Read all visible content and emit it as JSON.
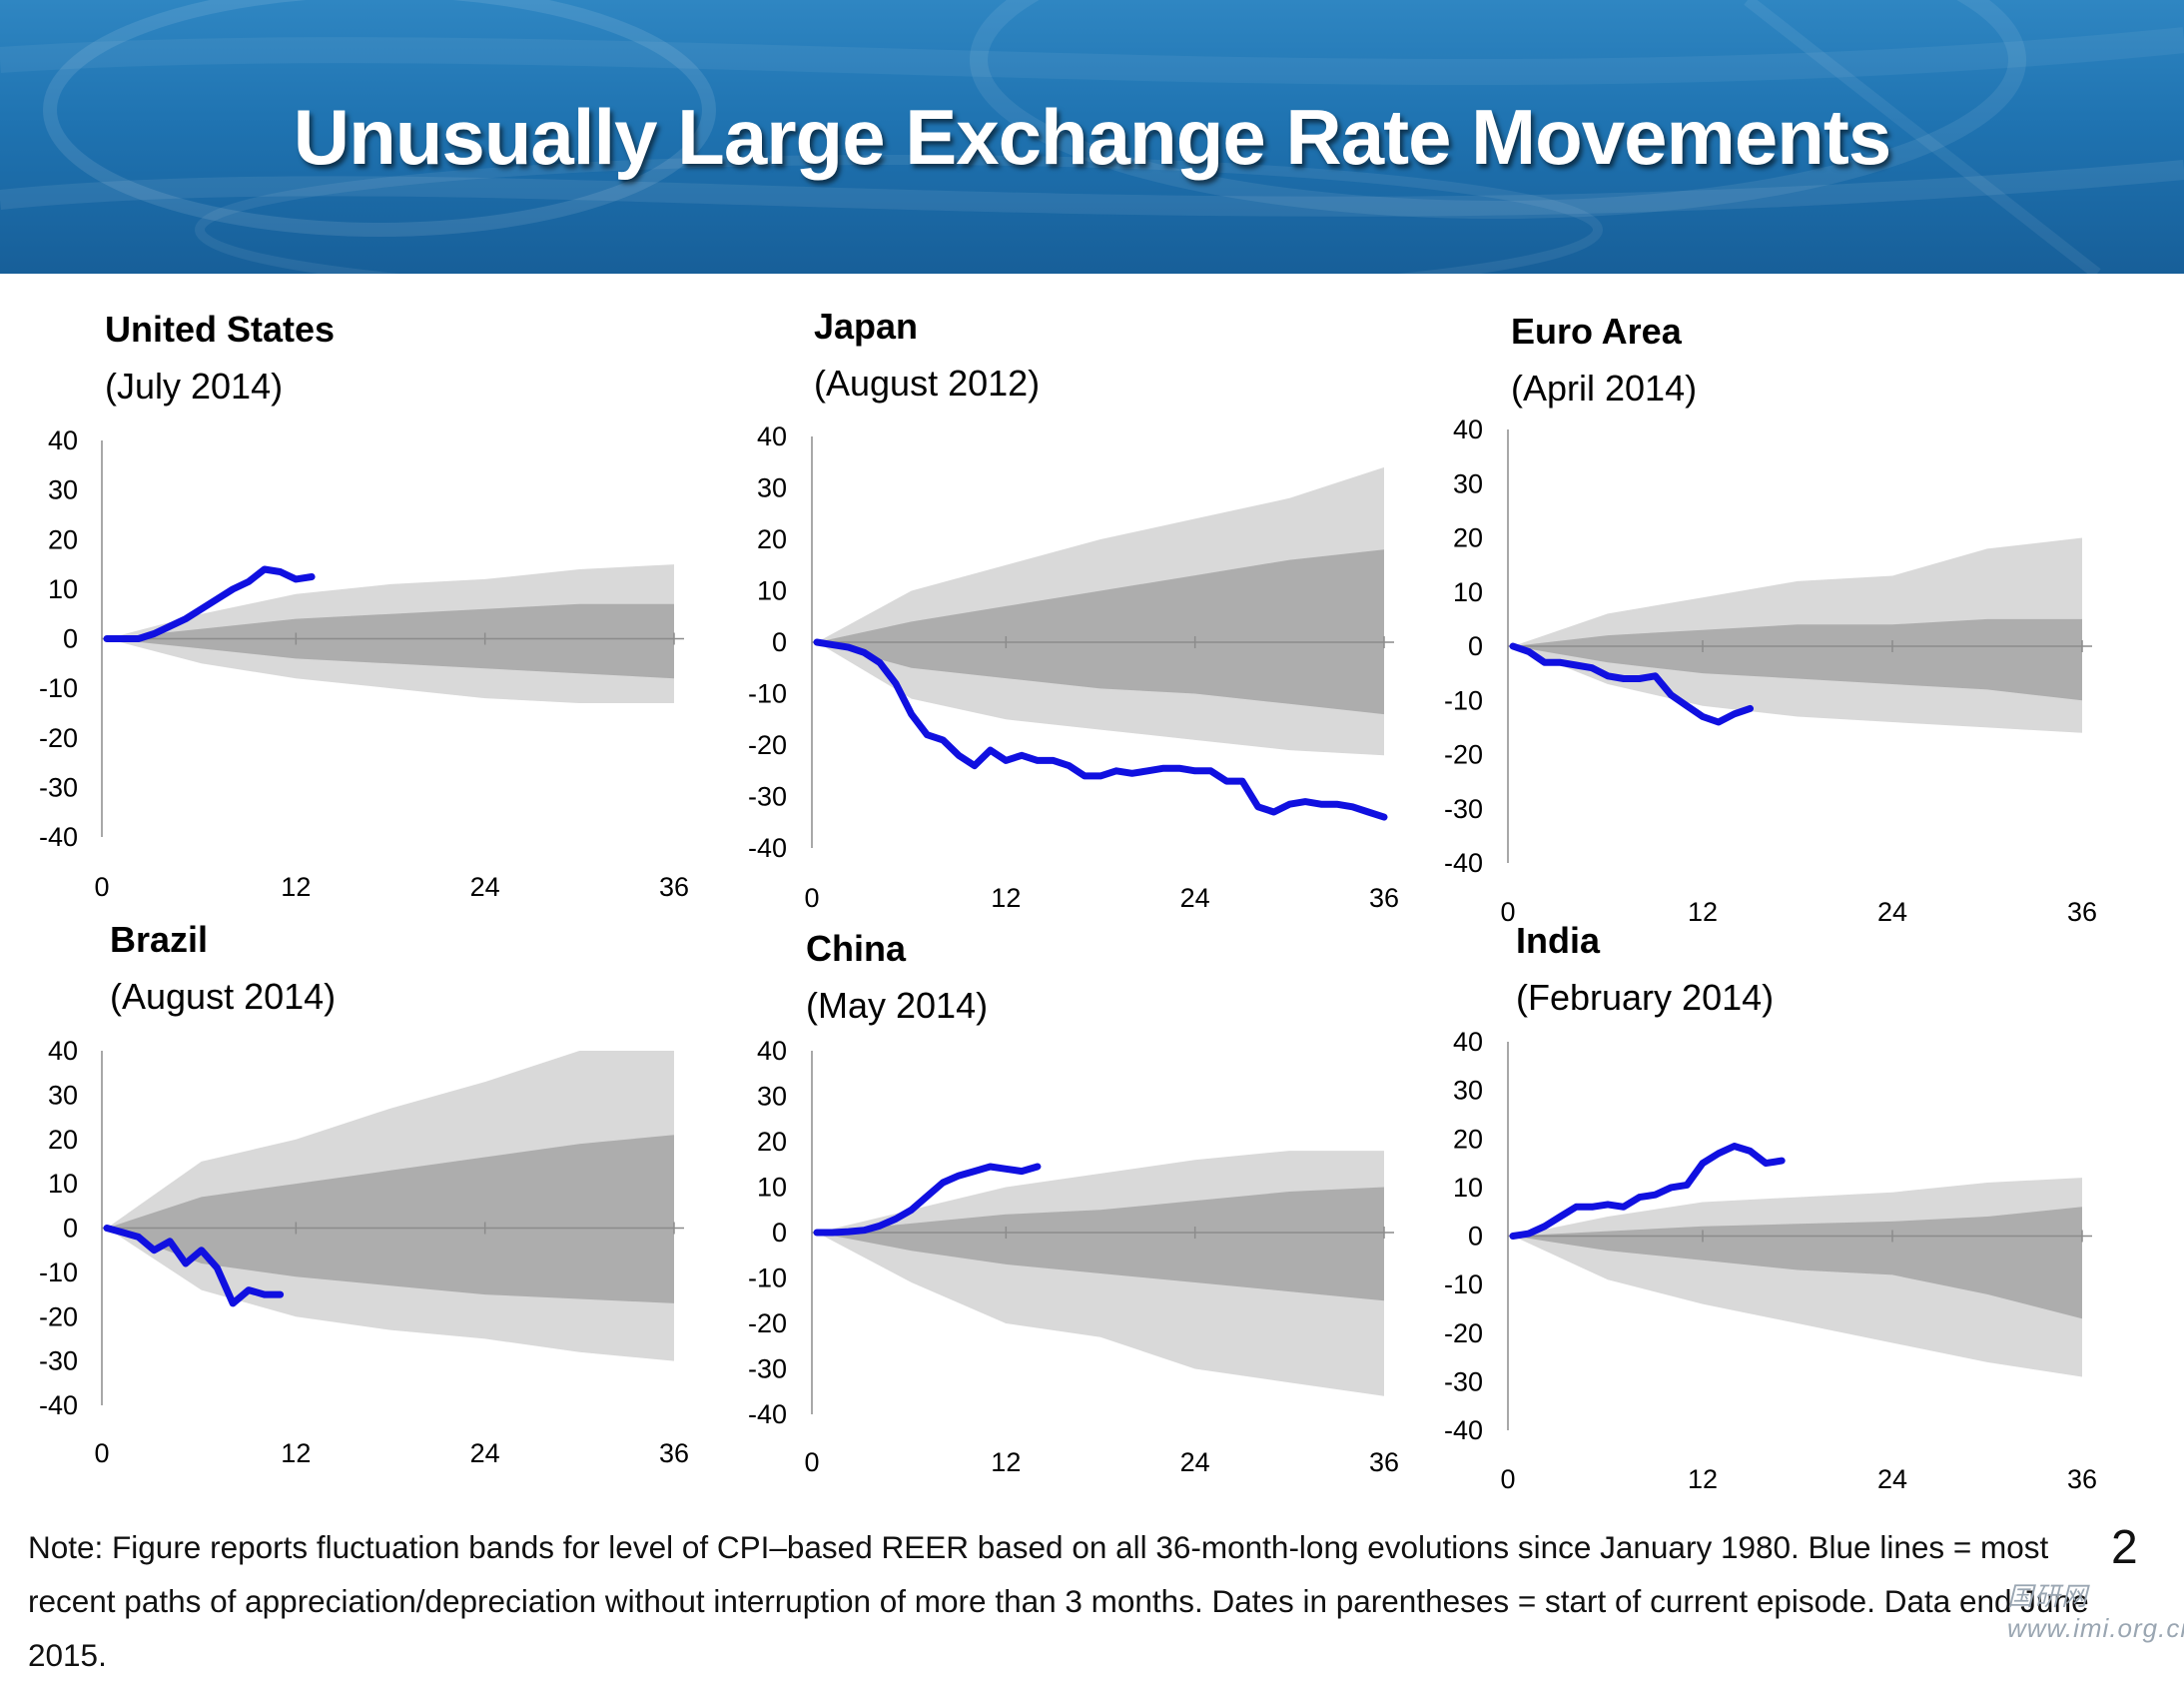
{
  "title": "Unusually Large Exchange Rate Movements",
  "note": "Note: Figure reports fluctuation bands for level of CPI–based REER based on all 36-month-long evolutions since January 1980. Blue lines = most recent paths of appreciation/depreciation without interruption of more than 3 months. Dates in parentheses = start of current episode. Data end June 2015.",
  "page_number": "2",
  "watermark": "国研网 www.imi.org.cn",
  "colors": {
    "banner": "#1f73b1",
    "line": "#1010e0",
    "outer_band": "#d9d9d9",
    "inner_band": "#adadad",
    "text": "#000000"
  },
  "chart_data": [
    {
      "type": "area",
      "title": "United States",
      "subtitle": "(July 2014)",
      "xticks": [
        0,
        12,
        24,
        36
      ],
      "yticks": [
        40,
        30,
        20,
        10,
        0,
        -10,
        -20,
        -30,
        -40
      ],
      "xlim": [
        0,
        36
      ],
      "ylim": [
        -40,
        40
      ],
      "bands": {
        "x": [
          0,
          6,
          12,
          18,
          24,
          30,
          36
        ],
        "outer_upper": [
          0,
          5,
          9,
          11,
          12,
          14,
          15
        ],
        "inner_upper": [
          0,
          2,
          4,
          5,
          6,
          7,
          7
        ],
        "inner_lower": [
          0,
          -2,
          -4,
          -5,
          -6,
          -7,
          -8
        ],
        "outer_lower": [
          0,
          -5,
          -8,
          -10,
          -12,
          -13,
          -13
        ]
      },
      "series": [
        {
          "x": [
            0,
            1,
            2,
            3,
            4,
            5,
            6,
            7,
            8,
            9,
            10,
            11,
            12,
            13
          ],
          "values": [
            0,
            0,
            0,
            1,
            2.5,
            4,
            6,
            8,
            10,
            11.5,
            14,
            13.5,
            12,
            12.5
          ]
        }
      ]
    },
    {
      "type": "area",
      "title": "Japan",
      "subtitle": "(August 2012)",
      "xticks": [
        0,
        12,
        24,
        36
      ],
      "yticks": [
        40,
        30,
        20,
        10,
        0,
        -10,
        -20,
        -30,
        -40
      ],
      "xlim": [
        0,
        36
      ],
      "ylim": [
        -40,
        40
      ],
      "bands": {
        "x": [
          0,
          6,
          12,
          18,
          24,
          30,
          36
        ],
        "outer_upper": [
          0,
          10,
          15,
          20,
          24,
          28,
          34
        ],
        "inner_upper": [
          0,
          4,
          7,
          10,
          13,
          16,
          18
        ],
        "inner_lower": [
          0,
          -5,
          -7,
          -9,
          -10,
          -12,
          -14
        ],
        "outer_lower": [
          0,
          -11,
          -15,
          -17,
          -19,
          -21,
          -22
        ]
      },
      "series": [
        {
          "x": [
            0,
            1,
            2,
            3,
            4,
            5,
            6,
            7,
            8,
            9,
            10,
            11,
            12,
            13,
            14,
            15,
            16,
            17,
            18,
            19,
            20,
            21,
            22,
            23,
            24,
            25,
            26,
            27,
            28,
            29,
            30,
            31,
            32,
            33,
            34,
            35,
            36
          ],
          "values": [
            0,
            -0.5,
            -1,
            -2,
            -4,
            -8,
            -14,
            -18,
            -19,
            -22,
            -24,
            -21,
            -23,
            -22,
            -23,
            -23,
            -24,
            -26,
            -26,
            -25,
            -25.5,
            -25,
            -24.5,
            -24.5,
            -25,
            -25,
            -27,
            -27,
            -32,
            -33,
            -31.5,
            -31,
            -31.5,
            -31.5,
            -32,
            -33,
            -34
          ]
        }
      ]
    },
    {
      "type": "area",
      "title": "Euro Area",
      "subtitle": "(April 2014)",
      "xticks": [
        0,
        12,
        24,
        36
      ],
      "yticks": [
        40,
        30,
        20,
        10,
        0,
        -10,
        -20,
        -30,
        -40
      ],
      "xlim": [
        0,
        36
      ],
      "ylim": [
        -40,
        40
      ],
      "bands": {
        "x": [
          0,
          6,
          12,
          18,
          24,
          30,
          36
        ],
        "outer_upper": [
          0,
          6,
          9,
          12,
          13,
          18,
          20
        ],
        "inner_upper": [
          0,
          2,
          3,
          4,
          4,
          5,
          5
        ],
        "inner_lower": [
          0,
          -3,
          -5,
          -6,
          -7,
          -8,
          -10
        ],
        "outer_lower": [
          0,
          -7,
          -11,
          -13,
          -14,
          -15,
          -16
        ]
      },
      "series": [
        {
          "x": [
            0,
            1,
            2,
            3,
            4,
            5,
            6,
            7,
            8,
            9,
            10,
            11,
            12,
            13,
            14,
            15
          ],
          "values": [
            0,
            -1,
            -3,
            -3,
            -3.5,
            -4,
            -5.5,
            -6,
            -6,
            -5.5,
            -9,
            -11,
            -13,
            -14,
            -12.5,
            -11.5
          ]
        }
      ]
    },
    {
      "type": "area",
      "title": "Brazil",
      "subtitle": "(August 2014)",
      "xticks": [
        0,
        12,
        24,
        36
      ],
      "yticks": [
        40,
        30,
        20,
        10,
        0,
        -10,
        -20,
        -30,
        -40
      ],
      "xlim": [
        0,
        36
      ],
      "ylim": [
        -40,
        40
      ],
      "bands": {
        "x": [
          0,
          6,
          12,
          18,
          24,
          30,
          36
        ],
        "outer_upper": [
          0,
          15,
          20,
          27,
          33,
          40,
          40
        ],
        "inner_upper": [
          0,
          7,
          10,
          13,
          16,
          19,
          21
        ],
        "inner_lower": [
          0,
          -8,
          -11,
          -13,
          -15,
          -16,
          -17
        ],
        "outer_lower": [
          0,
          -14,
          -20,
          -23,
          -25,
          -28,
          -30
        ]
      },
      "series": [
        {
          "x": [
            0,
            1,
            2,
            3,
            4,
            5,
            6,
            7,
            8,
            9,
            10,
            11
          ],
          "values": [
            0,
            -1,
            -2,
            -5,
            -3,
            -8,
            -5,
            -9,
            -17,
            -14,
            -15,
            -15
          ]
        }
      ]
    },
    {
      "type": "area",
      "title": "China",
      "subtitle": "(May 2014)",
      "xticks": [
        0,
        12,
        24,
        36
      ],
      "yticks": [
        40,
        30,
        20,
        10,
        0,
        -10,
        -20,
        -30,
        -40
      ],
      "xlim": [
        0,
        36
      ],
      "ylim": [
        -40,
        40
      ],
      "bands": {
        "x": [
          0,
          6,
          12,
          18,
          24,
          30,
          36
        ],
        "outer_upper": [
          0,
          5,
          10,
          13,
          16,
          18,
          18
        ],
        "inner_upper": [
          0,
          2,
          4,
          5,
          7,
          9,
          10
        ],
        "inner_lower": [
          0,
          -4,
          -7,
          -9,
          -11,
          -13,
          -15
        ],
        "outer_lower": [
          0,
          -11,
          -20,
          -23,
          -30,
          -33,
          -36
        ]
      },
      "series": [
        {
          "x": [
            0,
            1,
            2,
            3,
            4,
            5,
            6,
            7,
            8,
            9,
            10,
            11,
            12,
            13,
            14
          ],
          "values": [
            0,
            0,
            0.2,
            0.5,
            1.5,
            3,
            5,
            8,
            11,
            12.5,
            13.5,
            14.5,
            14,
            13.5,
            14.5
          ]
        }
      ]
    },
    {
      "type": "area",
      "title": "India",
      "subtitle": "(February 2014)",
      "xticks": [
        0,
        12,
        24,
        36
      ],
      "yticks": [
        40,
        30,
        20,
        10,
        0,
        -10,
        -20,
        -30,
        -40
      ],
      "xlim": [
        0,
        36
      ],
      "ylim": [
        -40,
        40
      ],
      "bands": {
        "x": [
          0,
          6,
          12,
          18,
          24,
          30,
          36
        ],
        "outer_upper": [
          0,
          4,
          7,
          8,
          9,
          11,
          12
        ],
        "inner_upper": [
          0,
          1,
          2,
          2.5,
          3,
          4,
          6
        ],
        "inner_lower": [
          0,
          -3,
          -5,
          -7,
          -8,
          -12,
          -17
        ],
        "outer_lower": [
          0,
          -9,
          -14,
          -18,
          -22,
          -26,
          -29
        ]
      },
      "series": [
        {
          "x": [
            0,
            1,
            2,
            3,
            4,
            5,
            6,
            7,
            8,
            9,
            10,
            11,
            12,
            13,
            14,
            15,
            16,
            17
          ],
          "values": [
            0,
            0.5,
            2,
            4,
            6,
            6,
            6.5,
            6,
            8,
            8.5,
            10,
            10.5,
            15,
            17,
            18.5,
            17.5,
            15,
            15.5
          ]
        }
      ]
    }
  ]
}
